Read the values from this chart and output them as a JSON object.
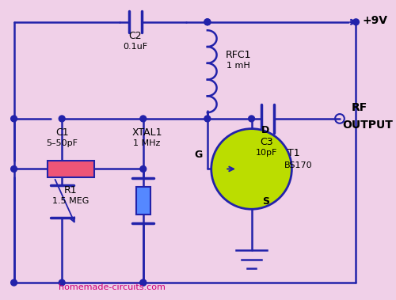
{
  "bg_color": "#f0d0e8",
  "line_color": "#2222aa",
  "watermark": "homemade-circuits.com",
  "watermark_color": "#cc0077",
  "vcc_label": "+9V",
  "rf_label1": "RF",
  "rf_label2": "OUTPUT",
  "c2_label": "C2",
  "c2_val": "0.1uF",
  "rfc1_label": "RFC1",
  "rfc1_val": "1 mH",
  "c1_label": "C1",
  "c1_val": "5–50pF",
  "xtal_label": "XTAL1",
  "xtal_val": "1 MHz",
  "c3_label": "C3",
  "c3_val": "10pF",
  "r1_label": "R1",
  "r1_val": "1.5 MEG",
  "t1_label": "T1",
  "t1_val": "BS170",
  "d_label": "D",
  "g_label": "G",
  "s_label": "S",
  "xtal_color": "#5588ff",
  "r1_color": "#ee5577",
  "fet_color": "#bbdd00",
  "node_r": 0.007
}
